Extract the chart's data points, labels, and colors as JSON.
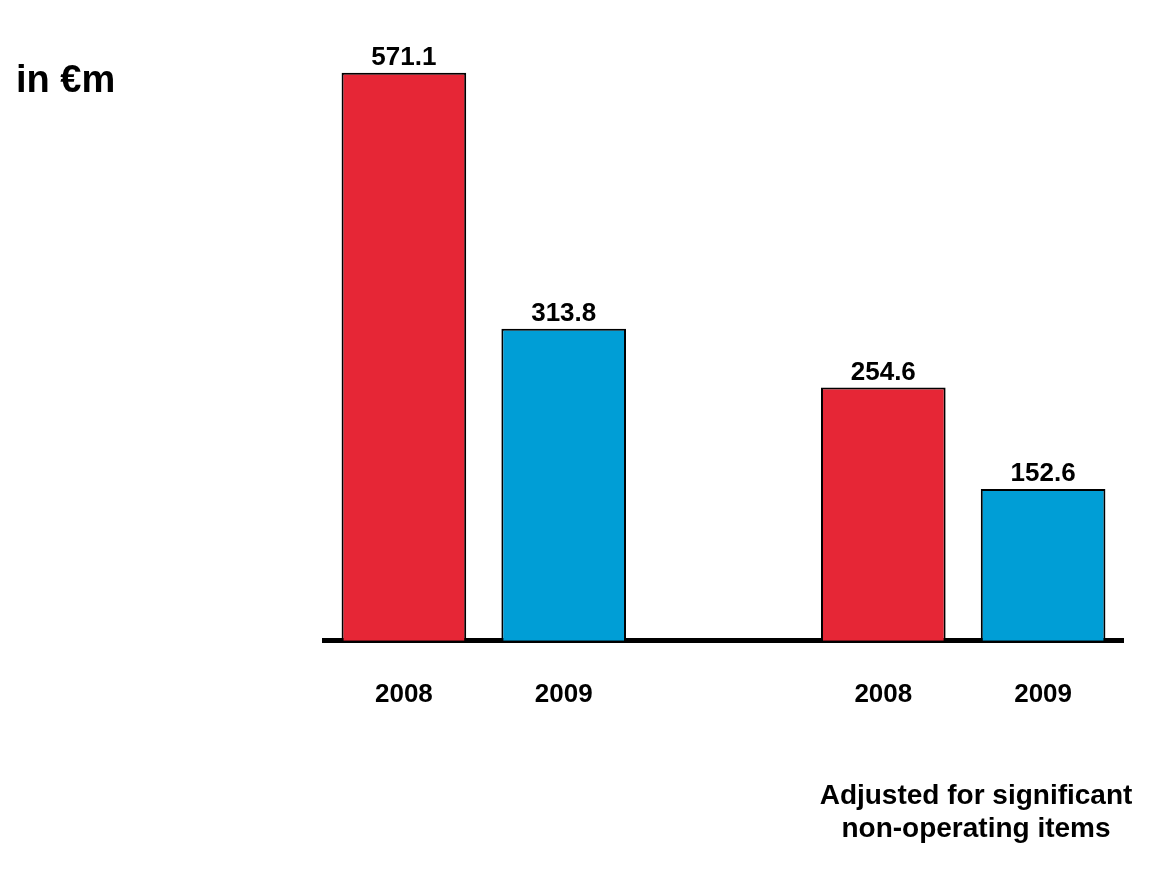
{
  "chart_data": {
    "type": "bar",
    "categories": [
      "2008",
      "2009",
      null,
      "2008",
      "2009"
    ],
    "values": [
      571.1,
      313.8,
      null,
      254.6,
      152.6
    ],
    "colors": [
      "#e62636",
      "#009ed6",
      null,
      "#e62636",
      "#009ed6"
    ],
    "data_labels": true,
    "grid": false,
    "legend": false,
    "annotations": [
      "in €m",
      "Adjusted for significant non-operating items"
    ]
  }
}
